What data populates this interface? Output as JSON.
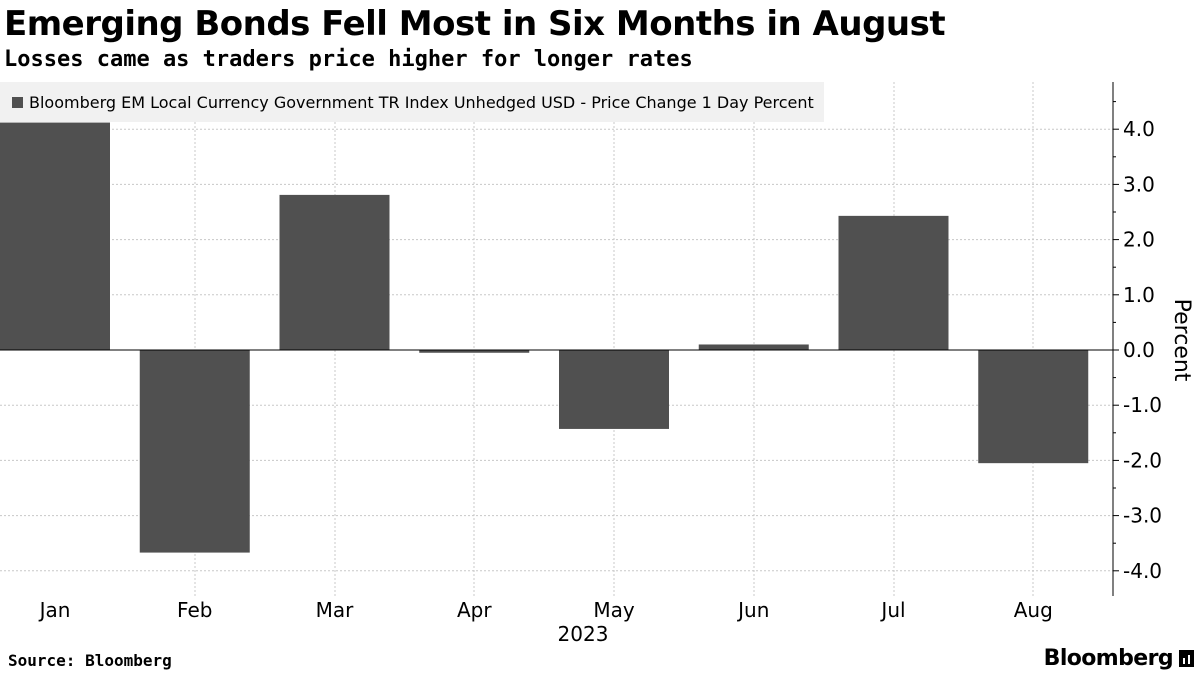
{
  "header": {
    "title": "Emerging Bonds Fell Most in Six Months in August",
    "subtitle": "Losses came as traders price higher for longer rates"
  },
  "footer": {
    "source": "Source: Bloomberg",
    "logo_text": "Bloomberg"
  },
  "chart_data": {
    "type": "bar",
    "title": "Emerging Bonds Fell Most in Six Months in August",
    "subtitle": "Losses came as traders price higher for longer rates",
    "categories": [
      "Jan",
      "Feb",
      "Mar",
      "Apr",
      "May",
      "Jun",
      "Jul",
      "Aug"
    ],
    "xlabel": "2023",
    "ylabel": "Percent",
    "ylim": [
      -4.4,
      4.8
    ],
    "y_ticks": [
      4.0,
      3.0,
      2.0,
      1.0,
      0.0,
      -1.0,
      -2.0,
      -3.0,
      -4.0
    ],
    "y_tick_labels": [
      "4.0",
      "3.0",
      "2.0",
      "1.0",
      "0.0",
      "-1.0",
      "-2.0",
      "-3.0",
      "-4.0"
    ],
    "y_axis_position": "right",
    "grid": true,
    "legend_position": "top-left",
    "series": [
      {
        "name": "Bloomberg EM Local Currency Government TR Index Unhedged USD - Price Change 1 Day Percent",
        "color": "#505050",
        "values": [
          4.12,
          -3.67,
          2.81,
          -0.05,
          -1.43,
          0.1,
          2.43,
          -2.05
        ]
      }
    ]
  }
}
